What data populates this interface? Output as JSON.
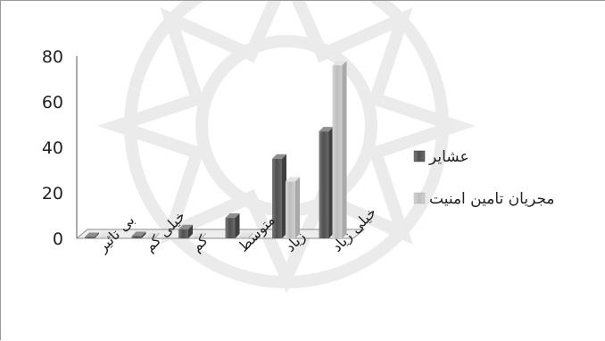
{
  "chart_data": {
    "type": "bar",
    "title": "",
    "xlabel": "",
    "ylabel": "",
    "ylim": [
      0,
      80
    ],
    "yticks": [
      0,
      20,
      40,
      60,
      80
    ],
    "grid": false,
    "legend_position": "right",
    "categories": [
      "بی تاثیر",
      "خیلی کم",
      "کم",
      "متوسط",
      "زیاد",
      "خیلی زیاد"
    ],
    "series": [
      {
        "name": "عشایر",
        "values": [
          0,
          1,
          4,
          9,
          35,
          47
        ],
        "color": "#5f5f5f"
      },
      {
        "name": "مجریان تامین امنیت",
        "values": [
          0,
          0,
          0,
          0,
          25,
          76
        ],
        "color": "#c4c4c4"
      }
    ]
  }
}
